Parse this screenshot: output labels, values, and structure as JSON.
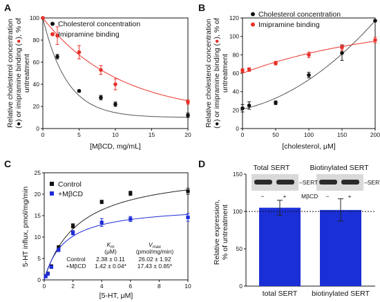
{
  "chart_data": [
    {
      "panel": "A",
      "type": "scatter",
      "xlabel": "[MβCD, mg/mL]",
      "ylabel_line1": "Relative cholesterol concentration",
      "ylabel_line2_a": "(",
      "ylabel_line2_b": ") or imipramine binding (",
      "ylabel_line2_c": "), % of",
      "ylabel_line3": "untreatment",
      "xlim": [
        0,
        20
      ],
      "ylim": [
        0,
        100
      ],
      "xticks": [
        "0",
        "5",
        "10",
        "15",
        "20"
      ],
      "yticks": [
        "0",
        "20",
        "40",
        "60",
        "80",
        "100"
      ],
      "legend_position": "top-right",
      "series": [
        {
          "name": "Cholesterol concentration",
          "color": "#111111",
          "x": [
            0,
            2,
            5,
            8,
            10,
            20
          ],
          "y": [
            100,
            65,
            34,
            28,
            22,
            12
          ],
          "err": [
            0,
            2,
            1,
            2,
            2,
            2
          ],
          "fit": "exp_decay"
        },
        {
          "name": "Imipramine binding",
          "color": "#e8312a",
          "x": [
            0,
            2,
            5,
            8,
            10,
            20
          ],
          "y": [
            100,
            84,
            69,
            53,
            40,
            24
          ],
          "err": [
            0,
            8,
            6,
            4,
            5,
            2
          ],
          "fit": "exp_decay"
        }
      ]
    },
    {
      "panel": "B",
      "type": "scatter",
      "xlabel": "[cholesterol, μM]",
      "ylabel_line1": "Relative cholesterol concentration",
      "ylabel_line2_a": "(",
      "ylabel_line2_b": ") or imipramine binding (",
      "ylabel_line2_c": "), % of",
      "ylabel_line3": "untreatment",
      "xlim": [
        0,
        200
      ],
      "ylim": [
        0,
        120
      ],
      "xticks": [
        "0",
        "50",
        "100",
        "150",
        "200"
      ],
      "yticks": [
        "0",
        "20",
        "40",
        "60",
        "80",
        "100",
        "120"
      ],
      "legend_position": "top-left",
      "series": [
        {
          "name": "Cholesterol concentration",
          "color": "#111111",
          "x": [
            0,
            10,
            50,
            100,
            150,
            200
          ],
          "y": [
            22,
            25,
            28,
            58,
            82,
            117
          ],
          "err": [
            4,
            4,
            2,
            3,
            8,
            1
          ],
          "fit": "sigmoid"
        },
        {
          "name": "Imipramine binding",
          "color": "#e8312a",
          "x": [
            0,
            10,
            50,
            100,
            150,
            200
          ],
          "y": [
            63,
            64,
            71,
            80,
            88,
            96
          ],
          "err": [
            2,
            2,
            2,
            3,
            3,
            3
          ],
          "fit": "saturating"
        }
      ]
    },
    {
      "panel": "C",
      "type": "scatter",
      "xlabel": "[5-HT, μM]",
      "ylabel": "5-HT influx, pmol/mg/min",
      "xlim": [
        0,
        10
      ],
      "ylim": [
        0,
        25
      ],
      "xticks": [
        "0",
        "2",
        "4",
        "6",
        "8",
        "10"
      ],
      "yticks": [
        "0",
        "5",
        "10",
        "15",
        "20",
        "25"
      ],
      "legend_position": "top-left",
      "series": [
        {
          "name": "Control",
          "color": "#111111",
          "x": [
            0.1,
            0.25,
            0.5,
            1,
            2,
            4,
            6,
            10
          ],
          "y": [
            0.9,
            1.5,
            3.2,
            7.6,
            12.6,
            18.2,
            20.2,
            20.7
          ],
          "err": [
            0.2,
            0.2,
            0.3,
            0.4,
            0.5,
            0.4,
            0.5,
            0.7
          ],
          "Vmax": 26.02,
          "Km": 2.38
        },
        {
          "name": "+MβCD",
          "color": "#1e2bd8",
          "x": [
            0.1,
            0.25,
            0.5,
            1,
            2,
            4,
            6,
            10
          ],
          "y": [
            0.8,
            1.4,
            3.0,
            7.0,
            11.0,
            13.4,
            14.2,
            14.6
          ],
          "err": [
            0.2,
            0.2,
            0.3,
            0.4,
            0.5,
            0.9,
            0.6,
            0.9
          ],
          "Vmax": 17.43,
          "Km": 1.42
        }
      ],
      "table": {
        "km_head": "K",
        "km_sub": "m",
        "km_unit": "(μM)",
        "vmax_head": "V",
        "vmax_sub": "max",
        "vmax_unit": "(pmol/mg/min)",
        "rows": [
          {
            "label": "Control",
            "km": "2.38 ± 0.11",
            "vmax": "26.02 ± 1.92"
          },
          {
            "label": "+MβCD",
            "km": "1.42 ± 0.04*",
            "vmax": "17.43 ± 0.85*"
          }
        ]
      }
    },
    {
      "panel": "D",
      "type": "bar",
      "ylabel_line1": "Relative expression,",
      "ylabel_line2": "% of untreatment",
      "ylim": [
        0,
        150
      ],
      "yticks": [
        "0",
        "50",
        "100",
        "150"
      ],
      "categories": [
        "total SERT",
        "biotinylated SERT"
      ],
      "values": [
        105,
        102
      ],
      "err": [
        10,
        15
      ],
      "bar_color": "#1a2fd6",
      "reference_line": 100,
      "blot_headers": [
        "Total SERT",
        "Biotinylated SERT"
      ],
      "blot_label": "SERT",
      "treatment_label": "MβCD",
      "treatment_signs": [
        "−",
        "+",
        "−",
        "+"
      ]
    }
  ]
}
